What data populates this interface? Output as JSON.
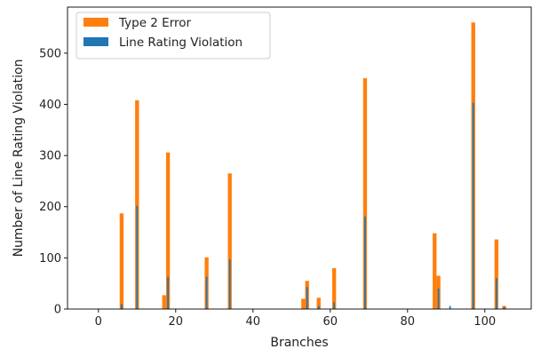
{
  "chart_data": {
    "type": "bar",
    "title": "",
    "xlabel": "Branches",
    "ylabel": "Number of Line Rating Violation",
    "xlim": [
      -8,
      112
    ],
    "ylim": [
      0,
      590
    ],
    "xticks": [
      0,
      20,
      40,
      60,
      80,
      100
    ],
    "yticks": [
      0,
      100,
      200,
      300,
      400,
      500
    ],
    "grid": false,
    "legend_position": "top-left",
    "series": [
      {
        "name": "Type 2 Error",
        "color": "#ff7f0e",
        "points": [
          {
            "x": 6,
            "y": 187
          },
          {
            "x": 10,
            "y": 408
          },
          {
            "x": 17,
            "y": 27
          },
          {
            "x": 18,
            "y": 306
          },
          {
            "x": 28,
            "y": 101
          },
          {
            "x": 34,
            "y": 265
          },
          {
            "x": 53,
            "y": 20
          },
          {
            "x": 54,
            "y": 55
          },
          {
            "x": 57,
            "y": 22
          },
          {
            "x": 61,
            "y": 80
          },
          {
            "x": 69,
            "y": 451
          },
          {
            "x": 87,
            "y": 148
          },
          {
            "x": 88,
            "y": 65
          },
          {
            "x": 97,
            "y": 560
          },
          {
            "x": 103,
            "y": 136
          },
          {
            "x": 105,
            "y": 6
          }
        ]
      },
      {
        "name": "Line Rating Violation",
        "color": "#1f77b4",
        "points": [
          {
            "x": 6,
            "y": 10
          },
          {
            "x": 10,
            "y": 202
          },
          {
            "x": 18,
            "y": 63
          },
          {
            "x": 28,
            "y": 63
          },
          {
            "x": 34,
            "y": 97
          },
          {
            "x": 54,
            "y": 43
          },
          {
            "x": 57,
            "y": 6
          },
          {
            "x": 61,
            "y": 13
          },
          {
            "x": 69,
            "y": 181
          },
          {
            "x": 88,
            "y": 40
          },
          {
            "x": 91,
            "y": 6
          },
          {
            "x": 97,
            "y": 403
          },
          {
            "x": 103,
            "y": 60
          },
          {
            "x": 105,
            "y": 4
          }
        ]
      }
    ]
  }
}
